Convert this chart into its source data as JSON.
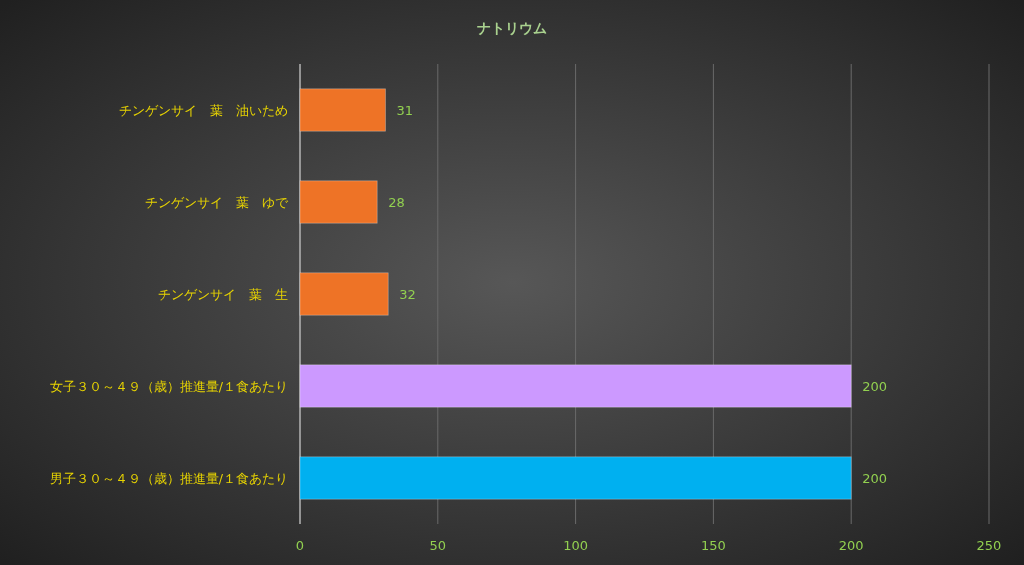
{
  "chart_data": {
    "type": "bar",
    "orientation": "horizontal",
    "title": "ナトリウム",
    "categories": [
      "チンゲンサイ　葉　油いため",
      "チンゲンサイ　葉　ゆで",
      "チンゲンサイ　葉　生",
      "女子３０～４９（歳）推進量/１食あたり",
      "男子３０～４９（歳）推進量/１食あたり"
    ],
    "values": [
      31,
      28,
      32,
      200,
      200
    ],
    "colors": [
      "#ee7326",
      "#ee7326",
      "#ee7326",
      "#cc99ff",
      "#00b0f0"
    ],
    "xlim": [
      0,
      250
    ],
    "xticks": [
      0,
      50,
      100,
      150,
      200,
      250
    ],
    "grid": "x",
    "data_labels": true
  }
}
